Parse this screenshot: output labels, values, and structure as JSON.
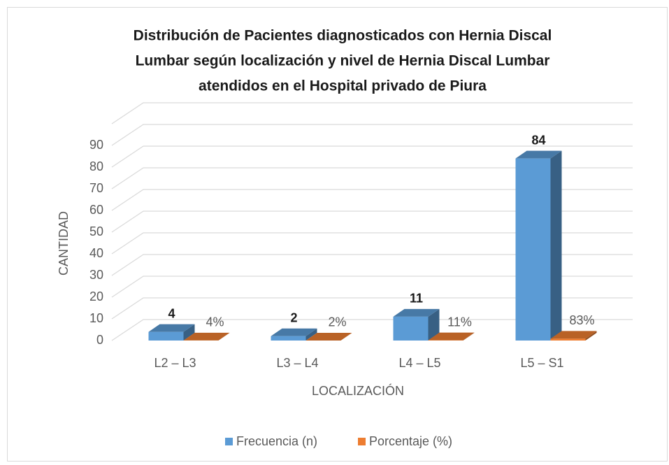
{
  "chart_data": {
    "type": "bar3d",
    "title": [
      "Distribución de Pacientes diagnosticados con Hernia Discal",
      "Lumbar según localización y nivel de Hernia Discal Lumbar",
      "atendidos en el Hospital privado de Piura"
    ],
    "x_label": "LOCALIZACIÓN",
    "y_label": "CANTIDAD",
    "categories": [
      "L2 – L3",
      "L3 – L4",
      "L4 – L5",
      "L5 – S1"
    ],
    "series": [
      {
        "name": "Frecuencia (n)",
        "color": "#5b9bd5",
        "values": [
          4,
          2,
          11,
          84
        ]
      },
      {
        "name": "Porcentaje (%)",
        "color": "#ed7d31",
        "values": [
          0.04,
          0.02,
          0.11,
          0.83
        ],
        "value_labels": [
          "4%",
          "2%",
          "11%",
          "83%"
        ]
      }
    ],
    "ylim": [
      0,
      100
    ],
    "yticks": [
      0,
      10,
      20,
      30,
      40,
      50,
      60,
      70,
      80,
      90
    ],
    "grid": true,
    "legend": "bottom"
  }
}
